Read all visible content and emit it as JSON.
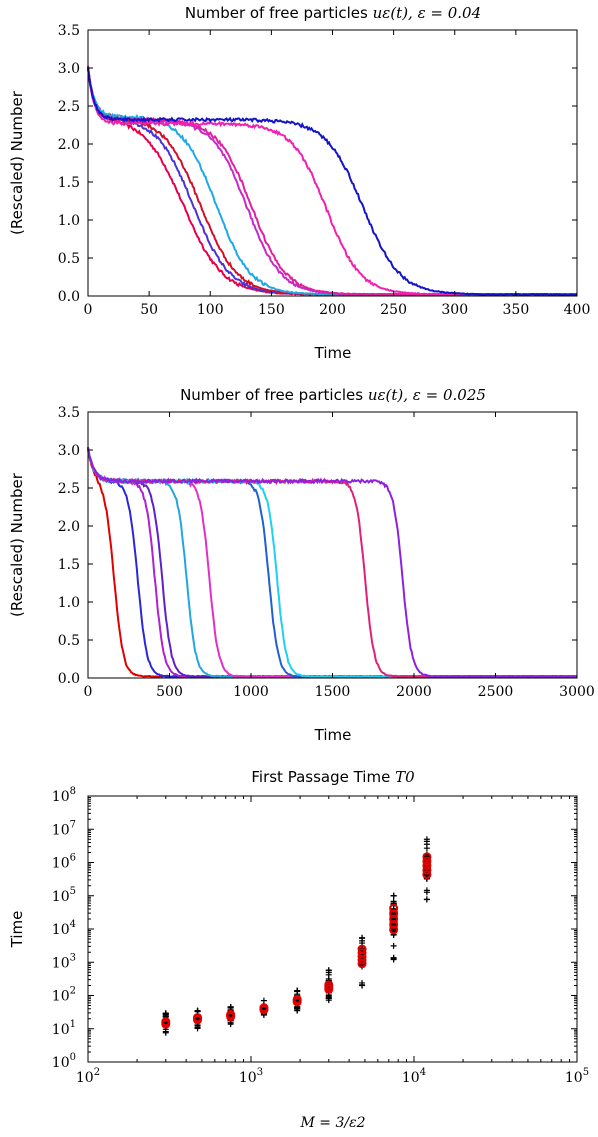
{
  "chart_data": [
    {
      "type": "line",
      "title_text": "Number of free particles ",
      "title_math": "uε(t), ε = 0.04",
      "xlabel": "Time",
      "ylabel": "(Rescaled) Number",
      "xlim": [
        0,
        400
      ],
      "ylim": [
        0.0,
        3.5
      ],
      "xticks": [
        "0",
        "50",
        "100",
        "150",
        "200",
        "250",
        "300",
        "350",
        "400"
      ],
      "yticks": [
        "0.0",
        "0.5",
        "1.0",
        "1.5",
        "2.0",
        "2.5",
        "3.0",
        "3.5"
      ],
      "grid": false,
      "series": [
        {
          "color": "#e6004c",
          "plateau": 2.35,
          "drop_center": 78,
          "width": 16
        },
        {
          "color": "#4b32d6",
          "plateau": 2.35,
          "drop_center": 86,
          "width": 15
        },
        {
          "color": "#d0102a",
          "plateau": 2.35,
          "drop_center": 92,
          "width": 15
        },
        {
          "color": "#1ea8e8",
          "plateau": 2.35,
          "drop_center": 105,
          "width": 14
        },
        {
          "color": "#c828c8",
          "plateau": 2.3,
          "drop_center": 130,
          "width": 14
        },
        {
          "color": "#e020a0",
          "plateau": 2.3,
          "drop_center": 134,
          "width": 14
        },
        {
          "color": "#f020b0",
          "plateau": 2.25,
          "drop_center": 195,
          "width": 14
        },
        {
          "color": "#1414c8",
          "plateau": 2.3,
          "drop_center": 225,
          "width": 15
        }
      ]
    },
    {
      "type": "line",
      "title_text": "Number of free particles ",
      "title_math": "uε(t), ε = 0.025",
      "xlabel": "Time",
      "ylabel": "(Rescaled) Number",
      "xlim": [
        0,
        3000
      ],
      "ylim": [
        0.0,
        3.5
      ],
      "xticks": [
        "0",
        "500",
        "1000",
        "1500",
        "2000",
        "2500",
        "3000"
      ],
      "yticks": [
        "0.0",
        "0.5",
        "1.0",
        "1.5",
        "2.0",
        "2.5",
        "3.0",
        "3.5"
      ],
      "grid": false,
      "series": [
        {
          "color": "#e00000",
          "plateau": 2.57,
          "drop_center": 160,
          "width": 28
        },
        {
          "color": "#2828d8",
          "plateau": 2.57,
          "drop_center": 305,
          "width": 28
        },
        {
          "color": "#b020d0",
          "plateau": 2.57,
          "drop_center": 410,
          "width": 28
        },
        {
          "color": "#6020c8",
          "plateau": 2.57,
          "drop_center": 455,
          "width": 28
        },
        {
          "color": "#22a6e0",
          "plateau": 2.57,
          "drop_center": 605,
          "width": 28
        },
        {
          "color": "#e030c8",
          "plateau": 2.57,
          "drop_center": 745,
          "width": 28
        },
        {
          "color": "#2060d0",
          "plateau": 2.57,
          "drop_center": 1110,
          "width": 28
        },
        {
          "color": "#20d0f0",
          "plateau": 2.57,
          "drop_center": 1160,
          "width": 28
        },
        {
          "color": "#e0207a",
          "plateau": 2.57,
          "drop_center": 1700,
          "width": 28
        },
        {
          "color": "#9020e0",
          "plateau": 2.57,
          "drop_center": 1930,
          "width": 28
        }
      ]
    },
    {
      "type": "scatter",
      "title_text": "First Passage Time ",
      "title_math": "T0",
      "xlabel_math": "M = 3/ε2",
      "ylabel": "Time",
      "xscale": "log",
      "yscale": "log",
      "xlim": [
        100,
        100000
      ],
      "ylim": [
        1,
        100000000
      ],
      "xtick_exponents": [
        2,
        3,
        4,
        5
      ],
      "ytick_exponents": [
        0,
        1,
        2,
        3,
        4,
        5,
        6,
        7,
        8
      ],
      "grid": false,
      "groups": [
        {
          "M": 300,
          "median": 15,
          "min": 7,
          "max": 30
        },
        {
          "M": 470,
          "median": 20,
          "min": 9,
          "max": 35
        },
        {
          "M": 750,
          "median": 25,
          "min": 12,
          "max": 45
        },
        {
          "M": 1200,
          "median": 40,
          "min": 20,
          "max": 70
        },
        {
          "M": 1920,
          "median": 70,
          "min": 35,
          "max": 150
        },
        {
          "M": 3000,
          "median": 180,
          "min": 50,
          "max": 600
        },
        {
          "M": 4800,
          "median": 1500,
          "min": 90,
          "max": 6000
        },
        {
          "M": 7500,
          "median": 20000,
          "min": 200,
          "max": 100000
        },
        {
          "M": 12000,
          "median": 800000,
          "min": 30000,
          "max": 5000000
        }
      ],
      "marker_colors": {
        "samples": "#000000",
        "highlight": "#e00000"
      }
    }
  ]
}
